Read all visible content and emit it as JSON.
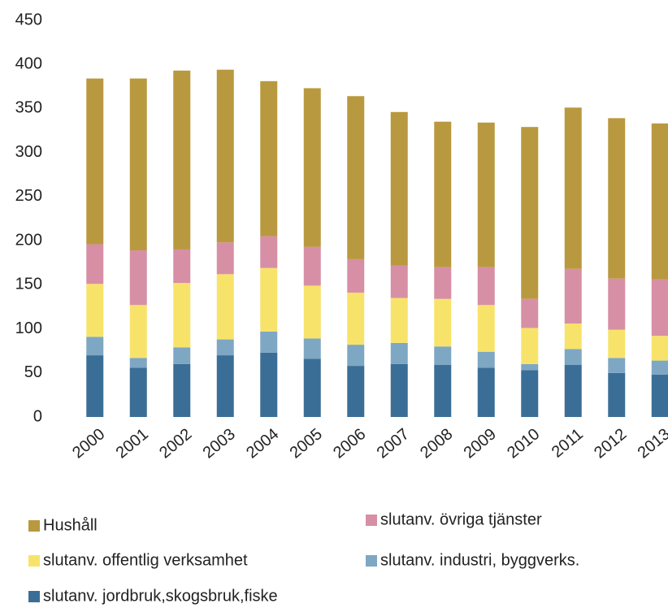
{
  "chart_data": {
    "type": "stacked_bar",
    "categories": [
      "2000",
      "2001",
      "2002",
      "2003",
      "2004",
      "2005",
      "2006",
      "2007",
      "2008",
      "2009",
      "2010",
      "2011",
      "2012",
      "2013"
    ],
    "series": [
      {
        "name": "slutanv. jordbruk,skogsbruk,fiske",
        "color": "#3b6e96",
        "values": [
          70,
          56,
          60,
          70,
          73,
          66,
          58,
          60,
          59,
          56,
          53,
          59,
          50,
          48
        ]
      },
      {
        "name": "slutanv. industri, byggverks.",
        "color": "#7ea7c4",
        "values": [
          21,
          11,
          19,
          18,
          24,
          23,
          24,
          24,
          21,
          18,
          7,
          18,
          17,
          16
        ]
      },
      {
        "name": "slutanv. offentlig verksamhet",
        "color": "#f8e36a",
        "values": [
          60,
          60,
          73,
          74,
          72,
          60,
          59,
          51,
          54,
          53,
          41,
          29,
          32,
          28
        ]
      },
      {
        "name": "slutanv. övriga tjänster",
        "color": "#d78fa5",
        "values": [
          45,
          62,
          38,
          36,
          36,
          44,
          38,
          37,
          36,
          43,
          33,
          62,
          58,
          64
        ]
      },
      {
        "name": "Hushåll",
        "color": "#b9993f",
        "values": [
          188,
          195,
          203,
          196,
          176,
          180,
          185,
          174,
          165,
          164,
          195,
          183,
          182,
          177
        ]
      }
    ],
    "ylim": [
      0,
      450
    ],
    "yticks": [
      0,
      50,
      100,
      150,
      200,
      250,
      300,
      350,
      400,
      450
    ],
    "grid": false
  }
}
